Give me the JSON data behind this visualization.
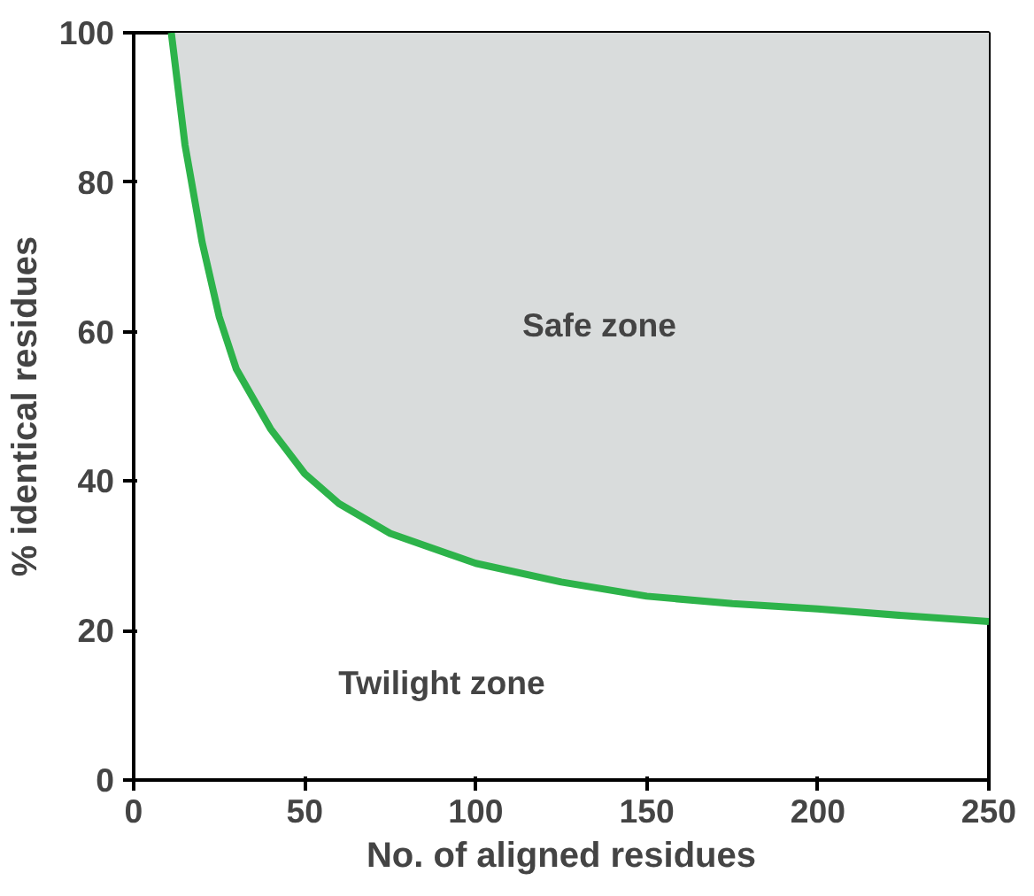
{
  "chart_data": {
    "type": "line",
    "xlabel": "No. of aligned residues",
    "ylabel": "% identical residues",
    "xlim": [
      0,
      250
    ],
    "ylim": [
      0,
      100
    ],
    "xticks": [
      0,
      50,
      100,
      150,
      200,
      250
    ],
    "yticks": [
      0,
      20,
      40,
      60,
      80,
      100
    ],
    "grid": false,
    "marker": "none",
    "line_style": "solid",
    "series": [
      {
        "color": "#2db34a",
        "x": [
          11,
          15,
          20,
          25,
          30,
          40,
          50,
          60,
          75,
          100,
          125,
          150,
          175,
          200,
          225,
          250
        ],
        "values": [
          100,
          85,
          72,
          62,
          55,
          47,
          41,
          37,
          33,
          29,
          26.5,
          24.6,
          23.6,
          22.9,
          22,
          21.2
        ],
        "lower": [
          100,
          85,
          72,
          62,
          55,
          47,
          41,
          37,
          33,
          29,
          26.5,
          24.6,
          23.6,
          22.9,
          22,
          21.2
        ],
        "upper": [
          100,
          100,
          100,
          100,
          100,
          100,
          100,
          100,
          100,
          100,
          100,
          100,
          100,
          100,
          100,
          100
        ]
      }
    ],
    "annotations": [
      "Safe zone",
      "Twilight zone"
    ]
  }
}
